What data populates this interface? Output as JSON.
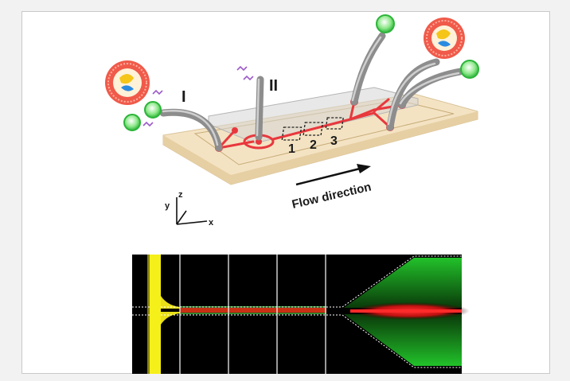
{
  "labels": {
    "inlet_1": "I",
    "inlet_2": "II",
    "window_1": "1",
    "window_2": "2",
    "window_3": "3",
    "flow": "Flow direction",
    "axis_x": "x",
    "axis_y": "y",
    "axis_z": "z"
  },
  "colors": {
    "chip": "#f4e3c3",
    "channel": "#e8383d",
    "tube": "#9a9a9a",
    "fluor_green": "#22c22a",
    "fluor_red": "#e81818",
    "fluor_yellow": "#f5ef1a"
  }
}
